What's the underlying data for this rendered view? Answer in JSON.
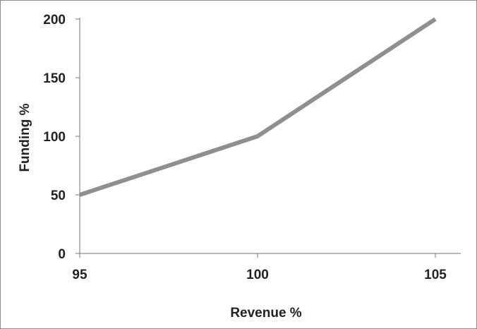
{
  "chart_data": {
    "type": "line",
    "title": "",
    "xlabel": "Revenue %",
    "ylabel": "Funding %",
    "xlim": [
      95,
      105
    ],
    "ylim": [
      0,
      200
    ],
    "x_ticks": [
      "95",
      "100",
      "105"
    ],
    "y_ticks": [
      "0",
      "50",
      "100",
      "150",
      "200"
    ],
    "grid": false,
    "legend": "none",
    "series": [
      {
        "x": [
          95,
          100,
          105
        ],
        "y": [
          50,
          100,
          200
        ],
        "color": "#8f8f8f"
      }
    ]
  }
}
